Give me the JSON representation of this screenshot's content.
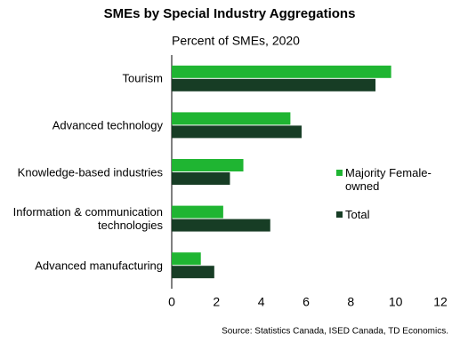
{
  "chart_data": {
    "type": "hbar",
    "title": "SMEs by Special Industry Aggregations",
    "subtitle": "Percent of SMEs, 2020",
    "source": "Source: Statistics Canada, ISED Canada, TD Economics.",
    "categories": [
      "Tourism",
      "Advanced technology",
      "Knowledge-based industries",
      "Information & communication technologies",
      "Advanced manufacturing"
    ],
    "series": [
      {
        "name": "Majority Female-owned",
        "color": "#1fb532",
        "values": [
          9.8,
          5.3,
          3.2,
          2.3,
          1.3
        ]
      },
      {
        "name": "Total",
        "color": "#173d25",
        "values": [
          9.1,
          5.8,
          2.6,
          4.4,
          1.9
        ]
      }
    ],
    "xlim": [
      0,
      12
    ],
    "xticks": [
      0,
      2,
      4,
      6,
      8,
      10,
      12
    ],
    "grid": false
  }
}
